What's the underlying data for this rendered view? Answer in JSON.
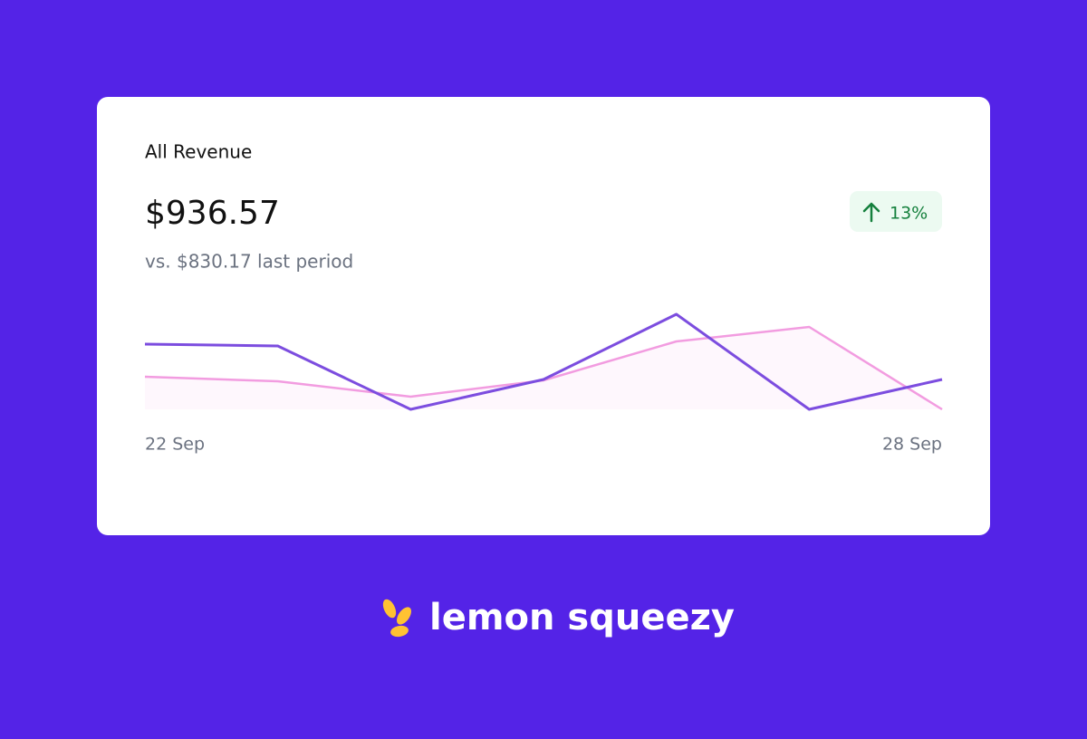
{
  "card": {
    "title": "All Revenue",
    "amount": "$936.57",
    "change": "13%",
    "comparison": "vs. $830.17 last period"
  },
  "chart_data": {
    "type": "line",
    "categories": [
      "22 Sep",
      null,
      null,
      null,
      null,
      null,
      "28 Sep"
    ],
    "series": [
      {
        "color": "#7c4ddf",
        "values": [
          72,
          70,
          0,
          33,
          105,
          0,
          33
        ]
      },
      {
        "color": "#f29ce0",
        "values": [
          36,
          31,
          14,
          32,
          75,
          91,
          0
        ],
        "area": true
      }
    ],
    "ylim": [
      0,
      107
    ]
  },
  "brand": {
    "name": "lemon squeezy"
  }
}
